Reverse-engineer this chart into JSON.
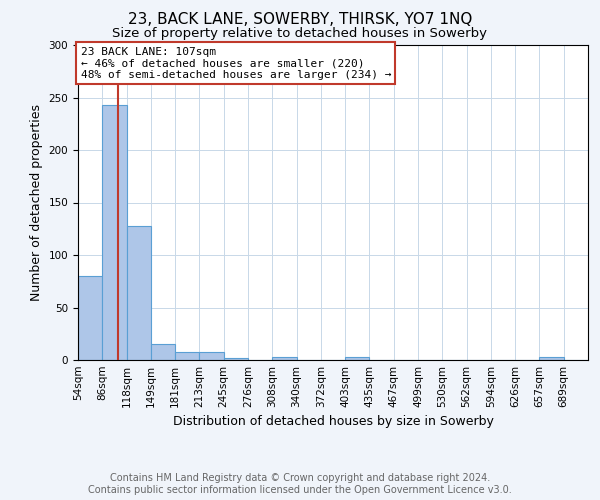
{
  "title": "23, BACK LANE, SOWERBY, THIRSK, YO7 1NQ",
  "subtitle": "Size of property relative to detached houses in Sowerby",
  "xlabel": "Distribution of detached houses by size in Sowerby",
  "ylabel": "Number of detached properties",
  "footer1": "Contains HM Land Registry data © Crown copyright and database right 2024.",
  "footer2": "Contains public sector information licensed under the Open Government Licence v3.0.",
  "bin_labels": [
    "54sqm",
    "86sqm",
    "118sqm",
    "149sqm",
    "181sqm",
    "213sqm",
    "245sqm",
    "276sqm",
    "308sqm",
    "340sqm",
    "372sqm",
    "403sqm",
    "435sqm",
    "467sqm",
    "499sqm",
    "530sqm",
    "562sqm",
    "594sqm",
    "626sqm",
    "657sqm",
    "689sqm"
  ],
  "bar_heights": [
    80,
    243,
    128,
    15,
    8,
    8,
    2,
    0,
    3,
    0,
    0,
    3,
    0,
    0,
    0,
    0,
    0,
    0,
    0,
    3,
    0
  ],
  "bar_color": "#aec6e8",
  "bar_edge_color": "#5a9fd4",
  "property_size_bin": 1.65,
  "vline_color": "#c0392b",
  "annotation_text": "23 BACK LANE: 107sqm\n← 46% of detached houses are smaller (220)\n48% of semi-detached houses are larger (234) →",
  "annotation_box_color": "#c0392b",
  "ylim": [
    0,
    300
  ],
  "yticks": [
    0,
    50,
    100,
    150,
    200,
    250,
    300
  ],
  "bg_color": "#f0f4fa",
  "plot_bg_color": "#ffffff",
  "title_fontsize": 11,
  "subtitle_fontsize": 9.5,
  "axis_label_fontsize": 9,
  "tick_fontsize": 7.5,
  "footer_fontsize": 7,
  "annotation_fontsize": 8
}
